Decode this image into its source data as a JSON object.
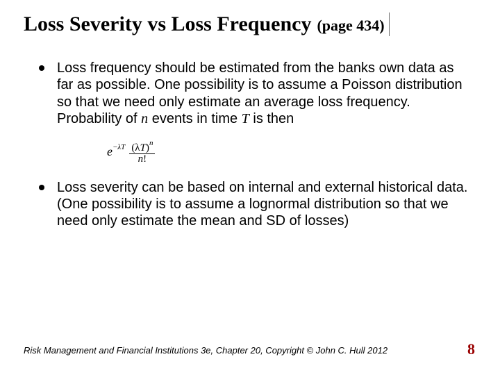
{
  "title": "Loss Severity vs Loss Frequency",
  "page_ref": "(page 434)",
  "bullets": [
    {
      "pre": "Loss frequency should be estimated from the banks own data as far as possible.  One possibility is to assume a Poisson distribution so that we need only estimate an average loss frequency. Probability of ",
      "var1": "n",
      "mid": " events in time ",
      "var2": "T",
      "post": " is then"
    },
    {
      "pre": "Loss severity can be based on internal and external historical data. (One possibility is to assume a lognormal distribution so that we need only estimate the mean and SD of losses)"
    }
  ],
  "formula": {
    "e_base": "e",
    "e_exp": "−λT",
    "num_left": "(λ",
    "num_var": "T",
    "num_right": ")",
    "num_exp": "n",
    "den_var": "n",
    "den_post": "!"
  },
  "footer": "Risk Management and Financial Institutions 3e, Chapter 20,  Copyright © John C. Hull 2012",
  "page_number": "8",
  "colors": {
    "page_number": "#9a0000",
    "text": "#000000",
    "bg": "#ffffff"
  }
}
